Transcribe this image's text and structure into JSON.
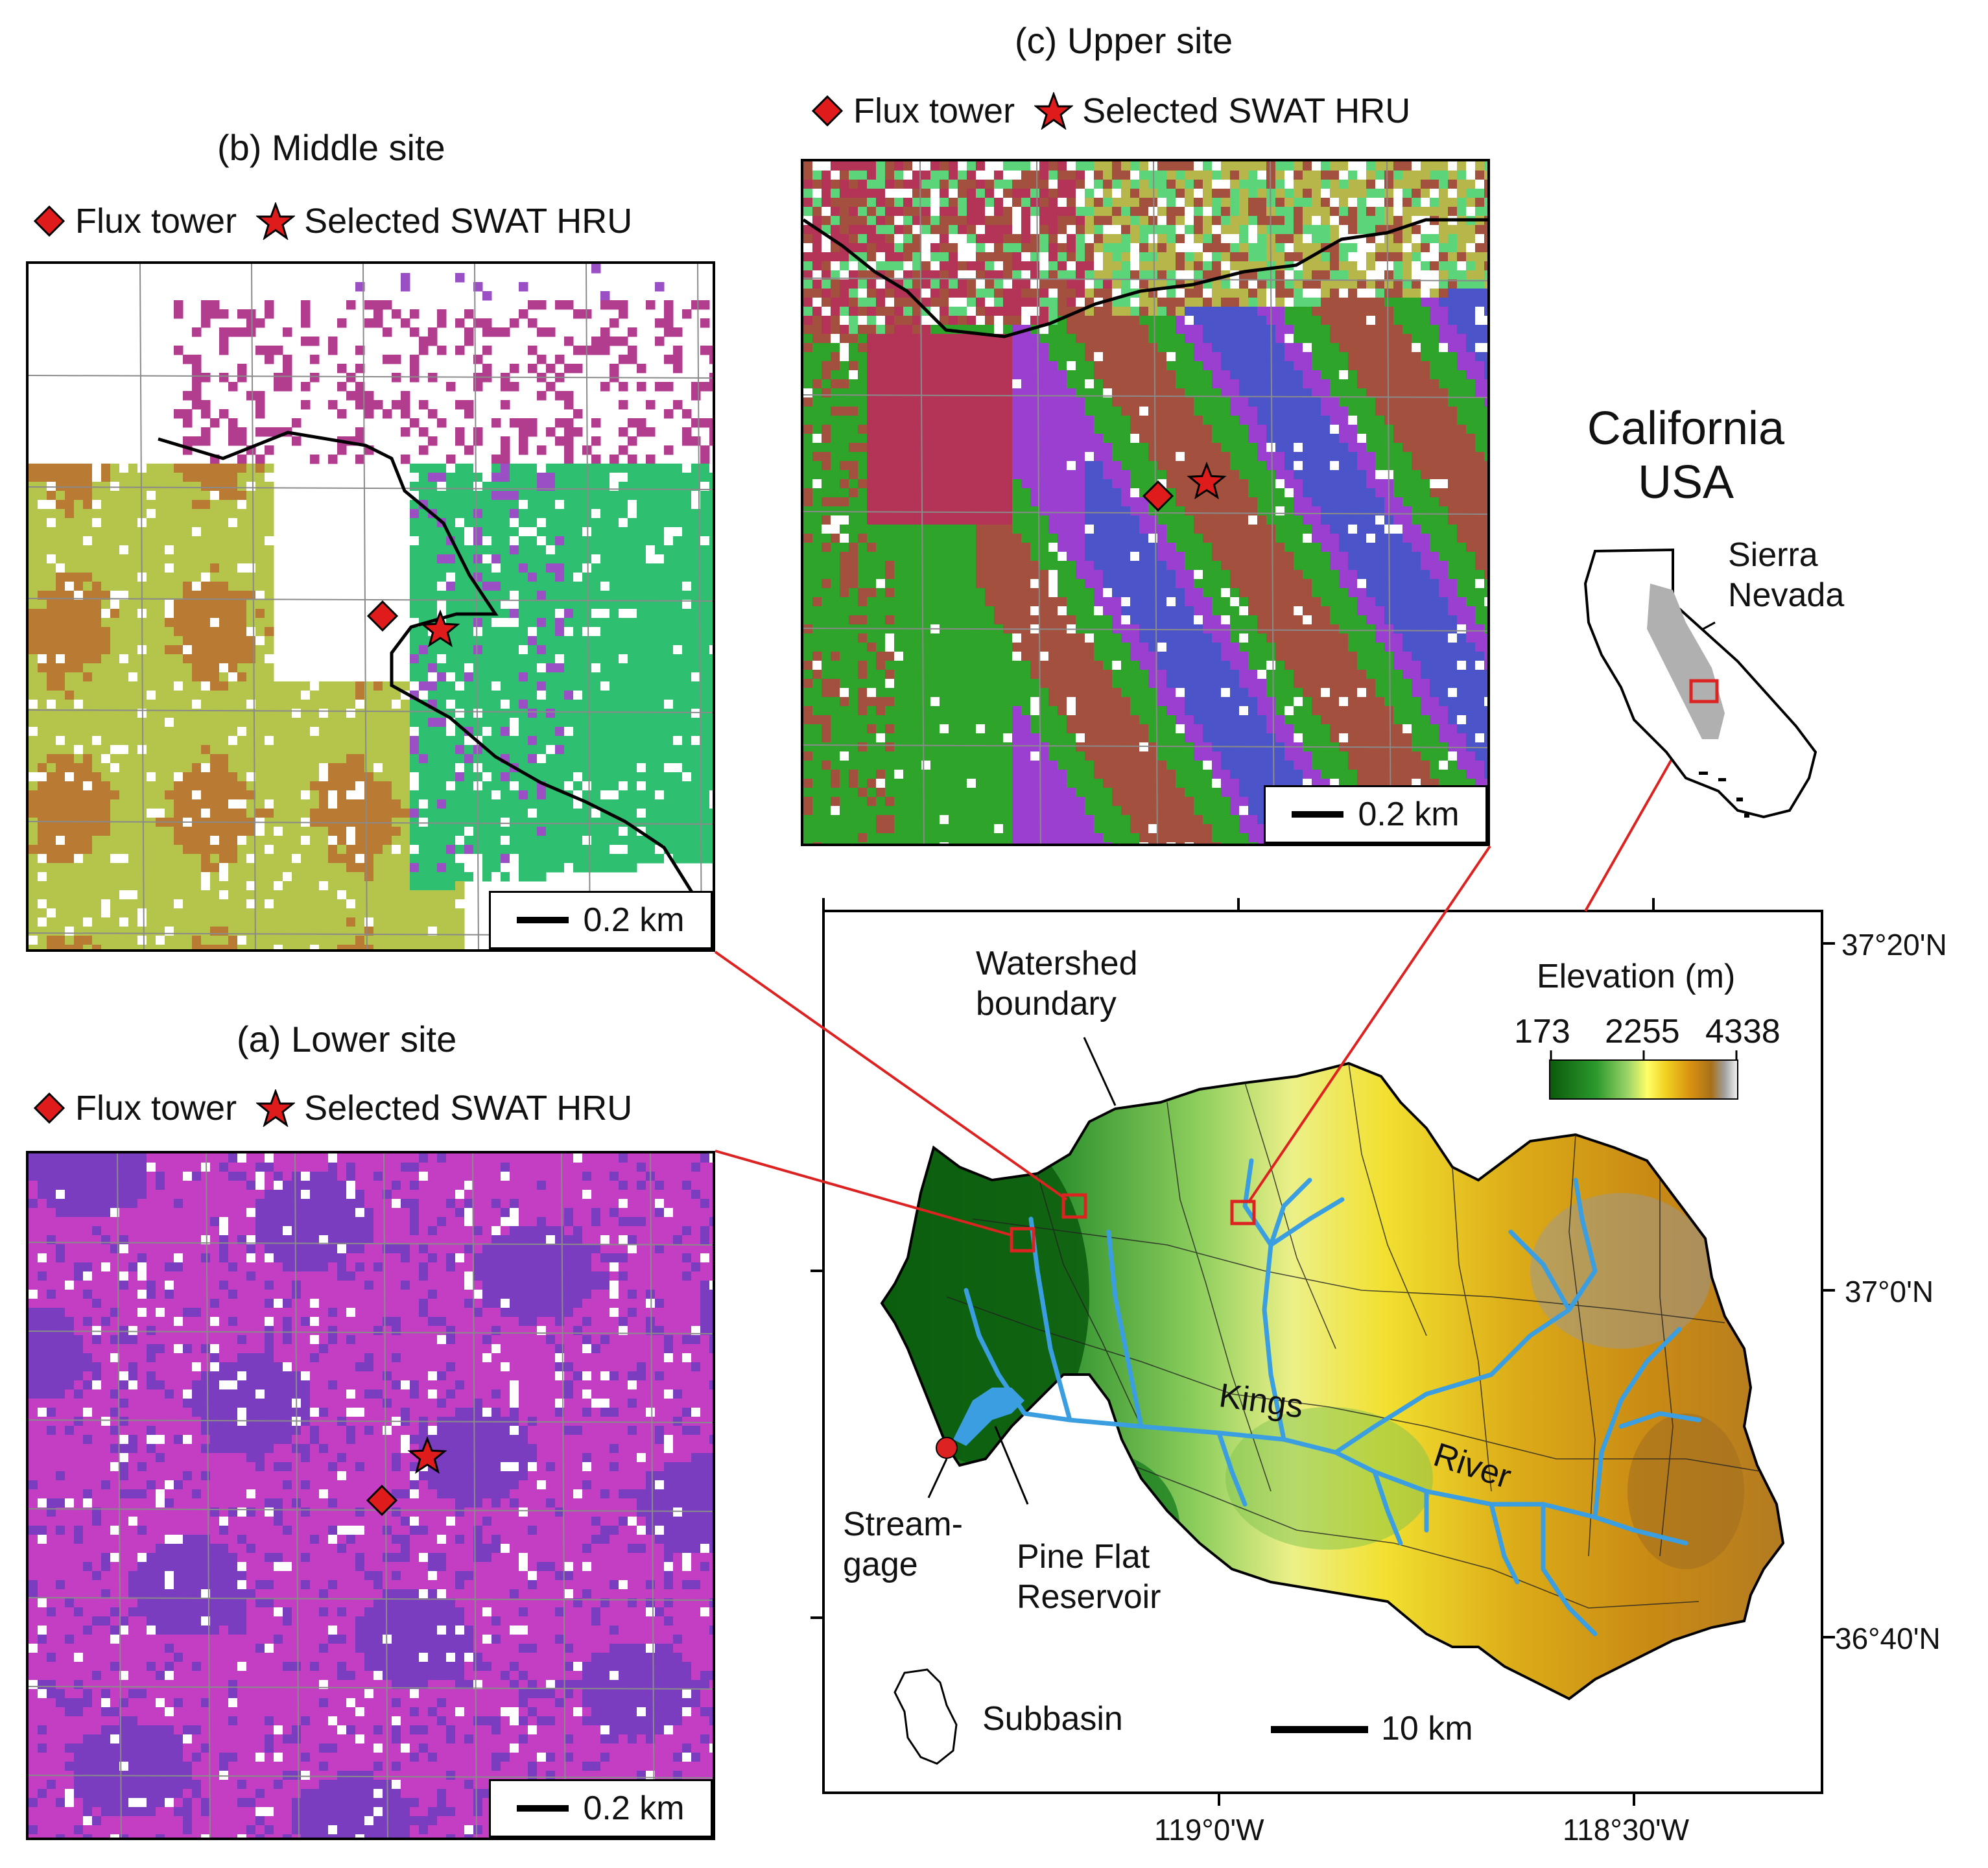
{
  "panels": {
    "b": {
      "title": "(b) Middle site",
      "legend_tower": "Flux tower",
      "legend_hru": "Selected SWAT HRU",
      "scale": "0.2 km",
      "palette": {
        "white": "#ffffff",
        "green": "#2fbf71",
        "orchid": "#b23d8f",
        "violet": "#9b4fc4",
        "olive": "#b5c44a",
        "brown": "#b97a33"
      }
    },
    "c": {
      "title": "(c) Upper site",
      "legend_tower": "Flux tower",
      "legend_hru": "Selected SWAT HRU",
      "scale": "0.2 km",
      "palette": {
        "green": "#2ea52a",
        "violet": "#9a3fd0",
        "blue": "#4b55c9",
        "brown": "#a4503e",
        "crimson": "#b43458",
        "olive": "#b6b64a",
        "lime": "#5cd47a",
        "white": "#ffffff"
      }
    },
    "a": {
      "title": "(a) Lower site",
      "legend_tower": "Flux tower",
      "legend_hru": "Selected SWAT HRU",
      "scale": "0.2 km",
      "palette": {
        "magenta": "#c43ec4",
        "purple": "#7a3dc0",
        "white": "#ffffff"
      }
    }
  },
  "main_map": {
    "labels": {
      "watershed_boundary": "Watershed\nboundary",
      "elevation_title": "Elevation (m)",
      "elev_min": "173",
      "elev_mid": "2255",
      "elev_max": "4338",
      "kings": "Kings",
      "river": "River",
      "streamgage": "Stream-\ngage",
      "reservoir": "Pine Flat\nReservoir",
      "subbasin": "Subbasin",
      "scale": "10 km"
    },
    "lat_ticks": [
      "37°20'N",
      "37°0'N",
      "36°40'N"
    ],
    "lon_ticks": [
      "119°0'W",
      "118°30'W"
    ],
    "colors": {
      "river": "#3a9ee0",
      "site_box": "#dd2222",
      "connector": "#dd2222",
      "gage": "#dd2222"
    }
  },
  "inset": {
    "state": "California\nUSA",
    "region": "Sierra\nNevada"
  },
  "symbols": {
    "tower_color": "#e01b1b",
    "hru_color": "#e01b1b"
  }
}
